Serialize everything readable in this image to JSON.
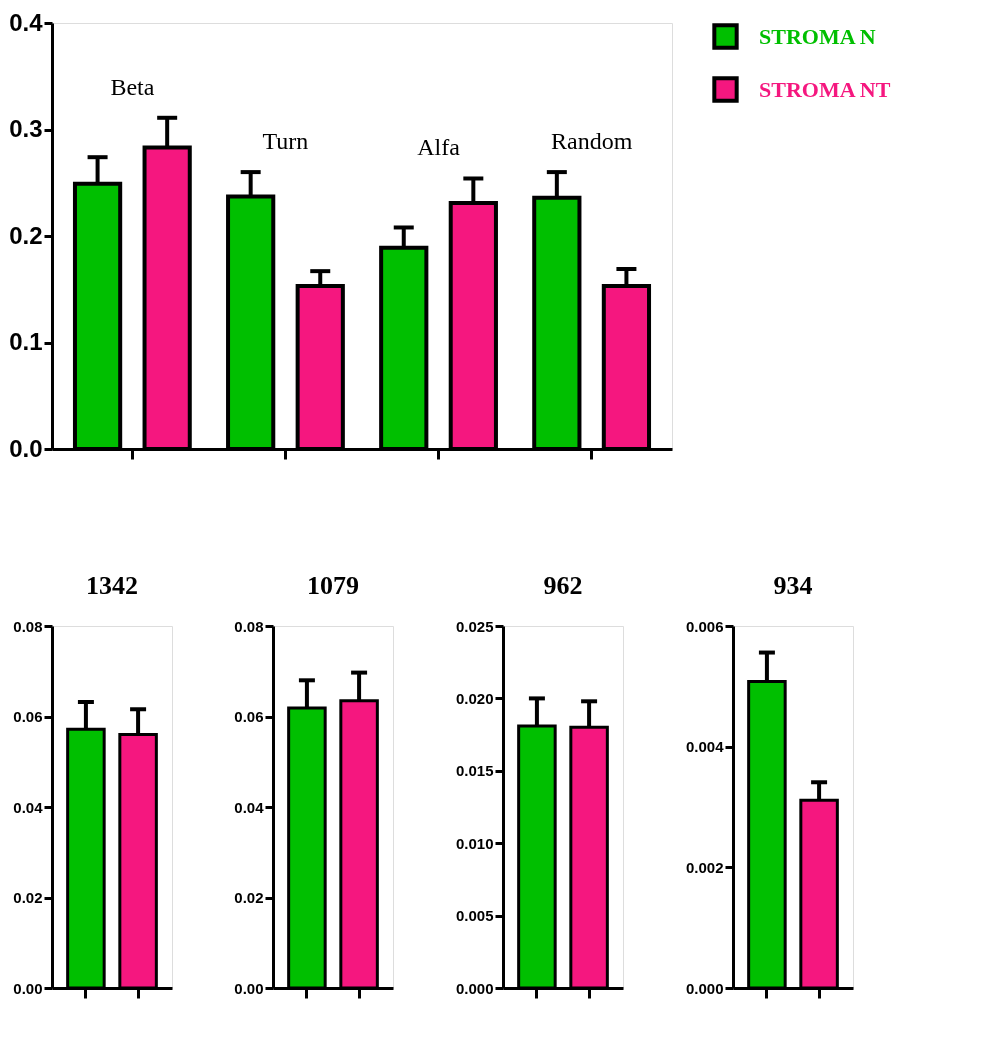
{
  "chart_data": [
    {
      "type": "bar",
      "categories": [
        "Beta",
        "Turn",
        "Alfa",
        "Random"
      ],
      "tick_labels": "y",
      "legend": "right",
      "series": [
        {
          "name": "STROMA N",
          "color": "#00bf00",
          "values": [
            0.249,
            0.237,
            0.189,
            0.236
          ],
          "errors": [
            [
              0.249,
              0.274
            ],
            [
              0.237,
              0.26
            ],
            [
              0.189,
              0.208
            ],
            [
              0.236,
              0.26
            ]
          ]
        },
        {
          "name": "STROMA NT",
          "color": "#f5177f",
          "values": [
            0.283,
            0.153,
            0.231,
            0.153
          ],
          "errors": [
            [
              0.283,
              0.311
            ],
            [
              0.153,
              0.167
            ],
            [
              0.231,
              0.254
            ],
            [
              0.153,
              0.169
            ]
          ]
        }
      ],
      "ylim": [
        0,
        0.4
      ],
      "yticks": [
        {
          "value": 0,
          "label": "0.0"
        },
        0.1,
        0.2,
        0.3,
        0.4
      ]
    },
    {
      "type": "bar",
      "title": "1342",
      "categories": [
        null,
        null
      ],
      "tick_labels": "y",
      "values": [
        0.0572,
        0.056
      ],
      "colors": [
        "#00bf00",
        "#f5177f"
      ],
      "errors": [
        [
          0.0572,
          0.0632
        ],
        [
          0.056,
          0.0616
        ]
      ],
      "ylim": [
        0,
        0.08
      ],
      "yticks": [
        {
          "value": 0,
          "label": "0.00"
        },
        0.02,
        0.04,
        0.06,
        0.08
      ]
    },
    {
      "type": "bar",
      "title": "1079",
      "categories": [
        null,
        null
      ],
      "tick_labels": "y",
      "values": [
        0.0619,
        0.0635
      ],
      "colors": [
        "#00bf00",
        "#f5177f"
      ],
      "errors": [
        [
          0.0619,
          0.068
        ],
        [
          0.0635,
          0.0697
        ]
      ],
      "ylim": [
        0,
        0.08
      ],
      "yticks": [
        {
          "value": 0,
          "label": "0.00"
        },
        0.02,
        0.04,
        0.06,
        0.08
      ]
    },
    {
      "type": "bar",
      "title": "962",
      "categories": [
        null,
        null
      ],
      "tick_labels": "y",
      "values": [
        0.0181,
        0.018
      ],
      "colors": [
        "#00bf00",
        "#f5177f"
      ],
      "errors": [
        [
          0.0181,
          0.02
        ],
        [
          0.018,
          0.0198
        ]
      ],
      "ylim": [
        0,
        0.025
      ],
      "yticks": [
        {
          "value": 0,
          "label": "0.000"
        },
        {
          "value": 0.005,
          "label": "0.005"
        },
        {
          "value": 0.01,
          "label": "0.010"
        },
        {
          "value": 0.015,
          "label": "0.015"
        },
        {
          "value": 0.02,
          "label": "0.020"
        },
        0.025
      ]
    },
    {
      "type": "bar",
      "title": "934",
      "categories": [
        null,
        null
      ],
      "tick_labels": "y",
      "values": [
        0.00508,
        0.00311
      ],
      "colors": [
        "#00bf00",
        "#f5177f"
      ],
      "errors": [
        [
          0.00508,
          0.00556
        ],
        [
          0.00311,
          0.00341
        ]
      ],
      "ylim": [
        0,
        0.006
      ],
      "yticks": [
        {
          "value": 0,
          "label": "0.000"
        },
        0.002,
        0.004,
        0.006
      ]
    }
  ]
}
